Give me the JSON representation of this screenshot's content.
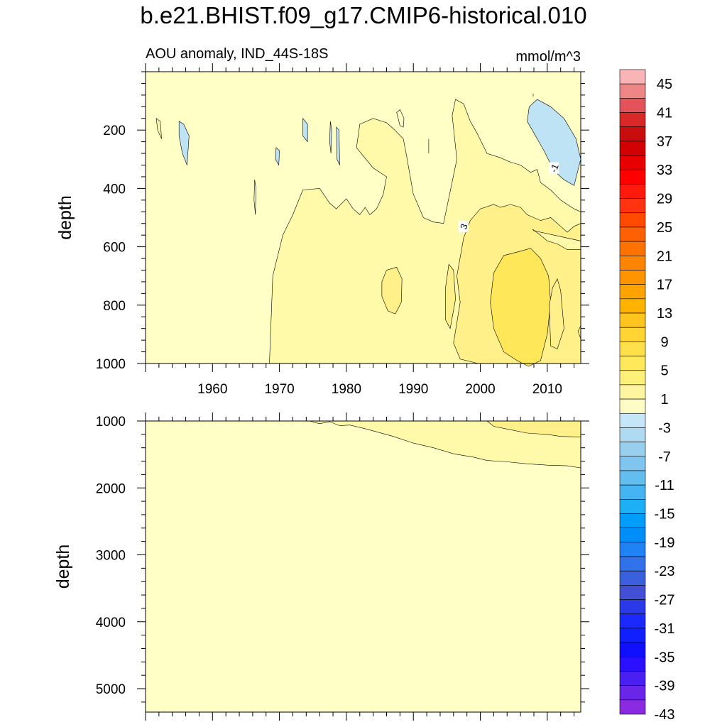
{
  "chart_data": {
    "type": "contour",
    "title": "b.e21.BHIST.f09_g17.CMIP6-historical.010",
    "subtitle_left": "AOU anomaly, IND_44S-18S",
    "subtitle_right": "mmol/m^3",
    "x_range": [
      1950,
      2015
    ],
    "x_ticks": [
      "1960",
      "1970",
      "1980",
      "1990",
      "2000",
      "2010"
    ],
    "upper_panel": {
      "ylabel": "depth",
      "ylim": [
        0,
        1000
      ],
      "y_ticks": [
        "200",
        "400",
        "600",
        "800",
        "1000"
      ],
      "contour_labels": [
        {
          "text": "3",
          "year": 1997.5,
          "depth": 530
        },
        {
          "text": "-1",
          "year": 2011,
          "depth": 330
        }
      ]
    },
    "lower_panel": {
      "ylabel": "depth",
      "ylim": [
        1000,
        5350
      ],
      "y_ticks": [
        "1000",
        "2000",
        "3000",
        "4000",
        "5000"
      ]
    },
    "colorbar": {
      "labels": [
        "45",
        "41",
        "37",
        "33",
        "29",
        "25",
        "21",
        "17",
        "13",
        "9",
        "5",
        "1",
        "-3",
        "-7",
        "-11",
        "-15",
        "-19",
        "-23",
        "-27",
        "-31",
        "-35",
        "-39",
        "-43"
      ],
      "colors": [
        "#f9b4b6",
        "#ee8686",
        "#e4525a",
        "#d92828",
        "#c90c0c",
        "#d20000",
        "#e80000",
        "#ff0000",
        "#ff1a0e",
        "#ff330f",
        "#ff4a00",
        "#ff6000",
        "#ff7200",
        "#ff8500",
        "#ff9400",
        "#ffa300",
        "#ffb300",
        "#ffc41e",
        "#ffd433",
        "#ffe04a",
        "#ffe85a",
        "#fff07a",
        "#fff5a0",
        "#fffbc5",
        "#c4e6f6",
        "#aedaf2",
        "#98cfee",
        "#7fc5ef",
        "#63bef0",
        "#45b5f2",
        "#1eb0f5",
        "#009ef8",
        "#008ffa",
        "#1f82f5",
        "#3171ea",
        "#3a60dd",
        "#4150d4",
        "#2a3ae8",
        "#1a2aff",
        "#0f1fff",
        "#1010ff",
        "#2a10ff",
        "#4a20f2",
        "#6a26e8",
        "#8a2be2"
      ]
    },
    "fill_colors": {
      "background": "#ffffc6",
      "level_1_3": "#fff9aa",
      "level_3_5": "#fff08a",
      "level_5_7": "#ffe75a",
      "negative": "#bde3f5"
    }
  }
}
